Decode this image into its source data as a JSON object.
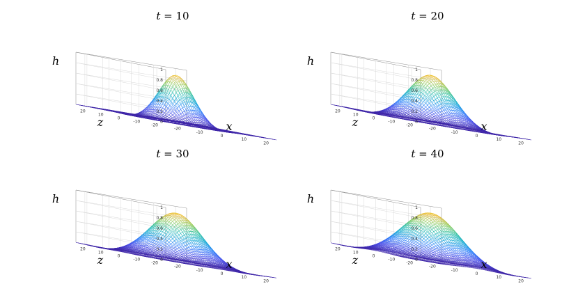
{
  "chart_data": [
    {
      "type": "surface",
      "title": "t = 10",
      "title_var": "t",
      "title_value": "10",
      "xlabel": "x",
      "ylabel": "z",
      "zlabel": "h",
      "xlim": [
        -25,
        25
      ],
      "ylim": [
        -25,
        25
      ],
      "zlim": [
        0,
        1
      ],
      "xticks": [
        "-20",
        "-10",
        "0",
        "10",
        "20"
      ],
      "yticks": [
        "20",
        "10",
        "0",
        "-10",
        "-20"
      ],
      "zticks": [
        "1",
        "0.8",
        "0.6",
        "0.4",
        "0.2",
        "0"
      ],
      "peak_h": 0.9,
      "width": 6
    },
    {
      "type": "surface",
      "title": "t = 20",
      "title_var": "t",
      "title_value": "20",
      "xlabel": "x",
      "ylabel": "z",
      "zlabel": "h",
      "xlim": [
        -25,
        25
      ],
      "ylim": [
        -25,
        25
      ],
      "zlim": [
        0,
        1
      ],
      "xticks": [
        "-20",
        "-10",
        "0",
        "10",
        "20"
      ],
      "yticks": [
        "20",
        "10",
        "0",
        "-10",
        "-20"
      ],
      "zticks": [
        "1",
        "0.8",
        "0.6",
        "0.4",
        "0.2",
        "0"
      ],
      "peak_h": 0.9,
      "width": 8
    },
    {
      "type": "surface",
      "title": "t = 30",
      "title_var": "t",
      "title_value": "30",
      "xlabel": "x",
      "ylabel": "z",
      "zlabel": "h",
      "xlim": [
        -25,
        25
      ],
      "ylim": [
        -25,
        25
      ],
      "zlim": [
        0,
        1
      ],
      "xticks": [
        "-20",
        "-10",
        "0",
        "10",
        "20"
      ],
      "yticks": [
        "20",
        "10",
        "0",
        "-10",
        "-20"
      ],
      "zticks": [
        "1",
        "0.8",
        "0.6",
        "0.4",
        "0.2",
        "0"
      ],
      "peak_h": 0.9,
      "width": 9
    },
    {
      "type": "surface",
      "title": "t = 40",
      "title_var": "t",
      "title_value": "40",
      "xlabel": "x",
      "ylabel": "z",
      "zlabel": "h",
      "xlim": [
        -25,
        25
      ],
      "ylim": [
        -25,
        25
      ],
      "zlim": [
        0,
        1
      ],
      "xticks": [
        "-20",
        "-10",
        "0",
        "10",
        "20"
      ],
      "yticks": [
        "20",
        "10",
        "0",
        "-10",
        "-20"
      ],
      "zticks": [
        "1",
        "0.8",
        "0.6",
        "0.4",
        "0.2",
        "0"
      ],
      "peak_h": 0.9,
      "width": 10
    }
  ],
  "colormap": [
    "#3e26a8",
    "#4a4ee9",
    "#2f80fa",
    "#15a8d8",
    "#2cc0a6",
    "#8cca58",
    "#e8ba3a",
    "#f9e21d"
  ]
}
